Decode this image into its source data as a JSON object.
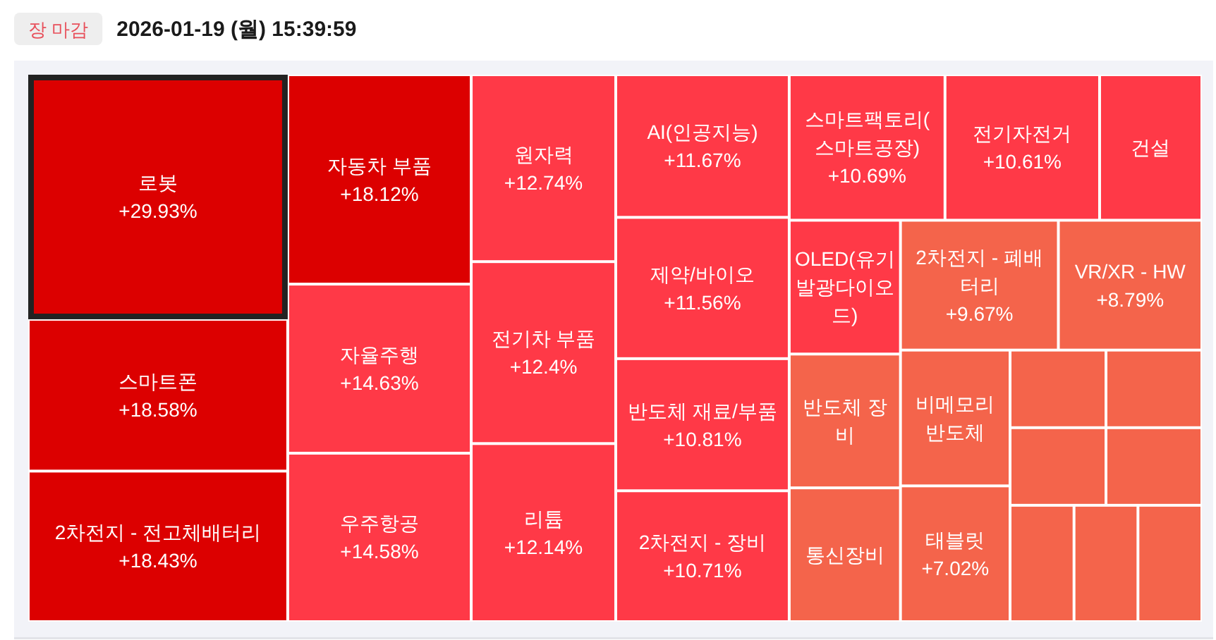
{
  "chart_data": {
    "type": "other",
    "title": "2026-01-19 (월) 15:39:59",
    "subtitle": "장 마감",
    "categories": [
      "로봇",
      "스마트폰",
      "2차전지 - 전고체배터리",
      "자동차 부품",
      "자율주행",
      "우주항공",
      "원자력",
      "전기차 부품",
      "리튬",
      "AI(인공지능)",
      "제약/바이오",
      "반도체 재료/부품",
      "2차전지 - 장비",
      "스마트팩토리(스마트공장)",
      "전기자전거",
      "건설",
      "OLED(유기발광다이오드)",
      "반도체 장비",
      "통신장비",
      "2차전지 - 폐배터리",
      "VR/XR - HW",
      "비메모리 반도체",
      "태블릿",
      null,
      null,
      null,
      null,
      null,
      null,
      null
    ],
    "values": [
      29.93,
      18.58,
      18.43,
      18.12,
      14.63,
      14.58,
      12.74,
      12.4,
      12.14,
      11.67,
      11.56,
      10.81,
      10.71,
      10.69,
      10.61,
      null,
      null,
      null,
      null,
      9.67,
      8.79,
      null,
      7.02,
      null,
      null,
      null,
      null,
      null,
      null,
      null
    ],
    "value_labels": [
      "+29.93%",
      "+18.58%",
      "+18.43%",
      "+18.12%",
      "+14.63%",
      "+14.58%",
      "+12.74%",
      "+12.4%",
      "+12.14%",
      "+11.67%",
      "+11.56%",
      "+10.81%",
      "+10.71%",
      "+10.69%",
      "+10.61%",
      null,
      null,
      null,
      null,
      "+9.67%",
      "+8.79%",
      null,
      "+7.02%",
      null,
      null,
      null,
      null,
      null,
      null,
      null
    ],
    "colors": [
      "#dc0000",
      "#dc0000",
      "#dc0000",
      "#dc0000",
      "#ff3947",
      "#ff3947",
      "#ff3947",
      "#ff3947",
      "#ff3947",
      "#ff3947",
      "#ff3947",
      "#ff3947",
      "#ff3947",
      "#ff3947",
      "#ff3947",
      "#ff3947",
      "#ff3947",
      "#f4644b",
      "#f4644b",
      "#f4644b",
      "#f4644b",
      "#f4644b",
      "#f4644b",
      "#f4644b",
      "#f4644b",
      "#f4644b",
      "#f4644b",
      "#f4644b",
      "#f4644b",
      "#f4644b"
    ]
  }
}
